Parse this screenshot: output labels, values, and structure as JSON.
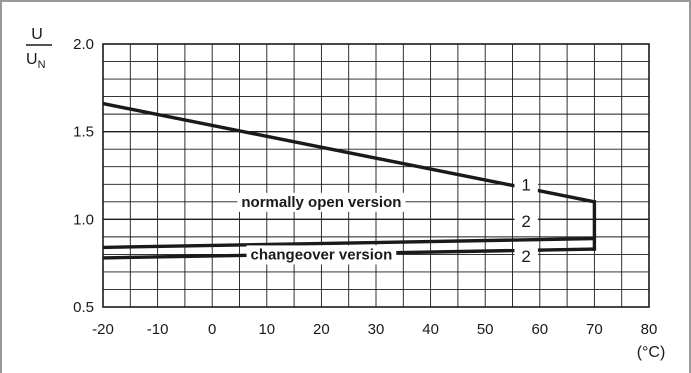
{
  "chart_data": {
    "type": "line",
    "ylabel_numerator": "U",
    "ylabel_denominator": "U",
    "ylabel_denominator_sub": "N",
    "xunit": "(°C)",
    "xlim": [
      -20,
      80
    ],
    "ylim": [
      0.5,
      2.0
    ],
    "x_ticks": [
      -20,
      -10,
      0,
      10,
      20,
      30,
      40,
      50,
      60,
      70,
      80
    ],
    "x_tick_labels": [
      "-20",
      "-10",
      "0",
      "10",
      "20",
      "30",
      "40",
      "50",
      "60",
      "70",
      "80"
    ],
    "y_ticks": [
      0.5,
      1.0,
      1.5,
      2.0
    ],
    "y_tick_labels": [
      "0.5",
      "1.0",
      "1.5",
      "2.0"
    ],
    "grid": {
      "x_step": 5,
      "y_step": 0.1,
      "y_major_step": 0.5
    },
    "series": [
      {
        "label": "1",
        "x": [
          -20,
          70
        ],
        "y": [
          1.66,
          1.1
        ]
      },
      {
        "label": "2",
        "x": [
          -20,
          70
        ],
        "y": [
          0.84,
          0.89
        ]
      },
      {
        "label": "2",
        "x": [
          -20,
          70
        ],
        "y": [
          0.78,
          0.83
        ]
      }
    ],
    "vertical_link": {
      "x": 70,
      "y": [
        0.83,
        1.1
      ]
    },
    "annotations": [
      {
        "text": "normally open version",
        "x": 20,
        "y": 1.1
      },
      {
        "text": "changeover version",
        "x": 20,
        "y": 0.8
      }
    ],
    "curve_number_labels": [
      {
        "text": "1",
        "x": 57.5,
        "y": 1.2
      },
      {
        "text": "2",
        "x": 57.5,
        "y": 0.99
      },
      {
        "text": "2",
        "x": 57.5,
        "y": 0.79
      }
    ]
  }
}
